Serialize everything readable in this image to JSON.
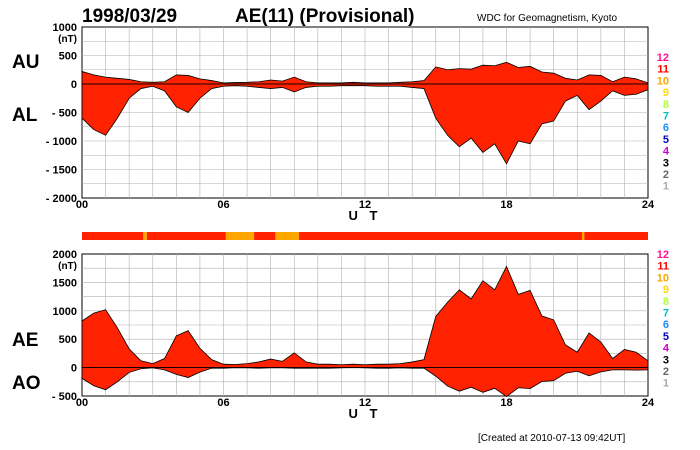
{
  "header": {
    "date": "1998/03/29",
    "index_title": "AE(11) (Provisional)",
    "source": "WDC for Geomagnetism, Kyoto",
    "created": "[Created at 2010-07-13 09:42UT]"
  },
  "color_scale": {
    "labels": [
      "12",
      "11",
      "10",
      "9",
      "8",
      "7",
      "6",
      "5",
      "4",
      "3",
      "2",
      "1"
    ],
    "colors": [
      "#ff1493",
      "#ff0000",
      "#ffa500",
      "#ffd700",
      "#adff2f",
      "#00c0c0",
      "#1e90ff",
      "#0000cd",
      "#cc00cc",
      "#000000",
      "#666666",
      "#aaaaaa"
    ]
  },
  "station_bar": {
    "segments": [
      {
        "start": 0.0,
        "end": 2.6,
        "count": 11
      },
      {
        "start": 2.6,
        "end": 2.75,
        "count": 10
      },
      {
        "start": 2.75,
        "end": 6.1,
        "count": 11
      },
      {
        "start": 6.1,
        "end": 7.3,
        "count": 10
      },
      {
        "start": 7.3,
        "end": 8.2,
        "count": 11
      },
      {
        "start": 8.2,
        "end": 9.2,
        "count": 10
      },
      {
        "start": 9.2,
        "end": 21.2,
        "count": 11
      },
      {
        "start": 21.2,
        "end": 21.3,
        "count": 10
      },
      {
        "start": 21.3,
        "end": 24.0,
        "count": 11
      }
    ]
  },
  "chart_data": [
    {
      "type": "area",
      "panel": "AU/AL",
      "side_labels": [
        "AU",
        "AL"
      ],
      "unit": "(nT)",
      "ylim": [
        -2000,
        1000
      ],
      "yticks": [
        1000,
        500,
        0,
        -500,
        -1000,
        -1500,
        -2000
      ],
      "ytick_labels": [
        "1000",
        "500",
        "0",
        "- 500",
        "- 1000",
        "- 1500",
        "- 2000"
      ],
      "xlim": [
        0,
        24
      ],
      "xticks": [
        0,
        6,
        12,
        18,
        24
      ],
      "xtick_labels": [
        "00",
        "06",
        "12",
        "18",
        "24"
      ],
      "xlabel": "U T",
      "grid": true,
      "series": [
        {
          "key": "AU",
          "x": [
            0,
            0.5,
            1,
            1.5,
            2,
            2.5,
            3,
            3.5,
            4,
            4.5,
            5,
            5.5,
            6,
            6.5,
            7,
            7.5,
            8,
            8.5,
            9,
            9.5,
            10,
            10.5,
            11,
            11.5,
            12,
            12.5,
            13,
            13.5,
            14,
            14.5,
            15,
            15.5,
            16,
            16.5,
            17,
            17.5,
            18,
            18.5,
            19,
            19.5,
            20,
            20.5,
            21,
            21.5,
            22,
            22.5,
            23,
            23.5,
            24
          ],
          "values": [
            220,
            160,
            120,
            100,
            80,
            40,
            30,
            40,
            160,
            150,
            90,
            60,
            20,
            25,
            30,
            40,
            70,
            50,
            120,
            40,
            20,
            20,
            20,
            30,
            20,
            20,
            20,
            30,
            40,
            60,
            300,
            250,
            270,
            260,
            330,
            320,
            380,
            290,
            310,
            210,
            190,
            100,
            70,
            160,
            150,
            40,
            120,
            90,
            20
          ]
        },
        {
          "key": "AL",
          "x": [
            0,
            0.5,
            1,
            1.5,
            2,
            2.5,
            3,
            3.5,
            4,
            4.5,
            5,
            5.5,
            6,
            6.5,
            7,
            7.5,
            8,
            8.5,
            9,
            9.5,
            10,
            10.5,
            11,
            11.5,
            12,
            12.5,
            13,
            13.5,
            14,
            14.5,
            15,
            15.5,
            16,
            16.5,
            17,
            17.5,
            18,
            18.5,
            19,
            19.5,
            20,
            20.5,
            21,
            21.5,
            22,
            22.5,
            23,
            23.5,
            24
          ],
          "values": [
            -600,
            -800,
            -900,
            -600,
            -250,
            -80,
            -40,
            -120,
            -400,
            -500,
            -250,
            -80,
            -40,
            -30,
            -40,
            -60,
            -80,
            -60,
            -140,
            -60,
            -40,
            -40,
            -30,
            -30,
            -30,
            -40,
            -40,
            -40,
            -60,
            -80,
            -600,
            -900,
            -1100,
            -950,
            -1200,
            -1050,
            -1400,
            -1000,
            -1050,
            -700,
            -650,
            -300,
            -200,
            -450,
            -300,
            -120,
            -200,
            -180,
            -100
          ]
        }
      ]
    },
    {
      "type": "area",
      "panel": "AE/AO",
      "side_labels": [
        "AE",
        "AO"
      ],
      "unit": "(nT)",
      "ylim": [
        -500,
        2000
      ],
      "yticks": [
        2000,
        1500,
        1000,
        500,
        0,
        -500
      ],
      "ytick_labels": [
        "2000",
        "1500",
        "1000",
        "500",
        "0",
        "- 500"
      ],
      "xlim": [
        0,
        24
      ],
      "xticks": [
        0,
        6,
        12,
        18,
        24
      ],
      "xtick_labels": [
        "00",
        "06",
        "12",
        "18",
        "24"
      ],
      "xlabel": "U T",
      "grid": true,
      "series": [
        {
          "key": "AE",
          "x": [
            0,
            0.5,
            1,
            1.5,
            2,
            2.5,
            3,
            3.5,
            4,
            4.5,
            5,
            5.5,
            6,
            6.5,
            7,
            7.5,
            8,
            8.5,
            9,
            9.5,
            10,
            10.5,
            11,
            11.5,
            12,
            12.5,
            13,
            13.5,
            14,
            14.5,
            15,
            15.5,
            16,
            16.5,
            17,
            17.5,
            18,
            18.5,
            19,
            19.5,
            20,
            20.5,
            21,
            21.5,
            22,
            22.5,
            23,
            23.5,
            24
          ],
          "values": [
            820,
            960,
            1020,
            700,
            330,
            120,
            70,
            160,
            560,
            650,
            340,
            140,
            60,
            55,
            70,
            100,
            150,
            110,
            260,
            100,
            60,
            60,
            50,
            60,
            50,
            60,
            60,
            70,
            100,
            140,
            900,
            1150,
            1370,
            1210,
            1530,
            1370,
            1780,
            1290,
            1360,
            910,
            840,
            400,
            270,
            610,
            450,
            160,
            320,
            270,
            120
          ]
        },
        {
          "key": "AO",
          "x": [
            0,
            0.5,
            1,
            1.5,
            2,
            2.5,
            3,
            3.5,
            4,
            4.5,
            5,
            5.5,
            6,
            6.5,
            7,
            7.5,
            8,
            8.5,
            9,
            9.5,
            10,
            10.5,
            11,
            11.5,
            12,
            12.5,
            13,
            13.5,
            14,
            14.5,
            15,
            15.5,
            16,
            16.5,
            17,
            17.5,
            18,
            18.5,
            19,
            19.5,
            20,
            20.5,
            21,
            21.5,
            22,
            22.5,
            23,
            23.5,
            24
          ],
          "values": [
            -190,
            -320,
            -390,
            -250,
            -85,
            -20,
            -5,
            -40,
            -120,
            -175,
            -80,
            -10,
            -10,
            -3,
            -5,
            -10,
            -5,
            -5,
            -10,
            -10,
            -10,
            -10,
            -5,
            0,
            -5,
            -10,
            -10,
            -5,
            -10,
            -10,
            -150,
            -325,
            -415,
            -345,
            -435,
            -365,
            -510,
            -355,
            -370,
            -245,
            -230,
            -100,
            -65,
            -145,
            -75,
            -40,
            -40,
            -45,
            -40
          ]
        }
      ]
    }
  ]
}
